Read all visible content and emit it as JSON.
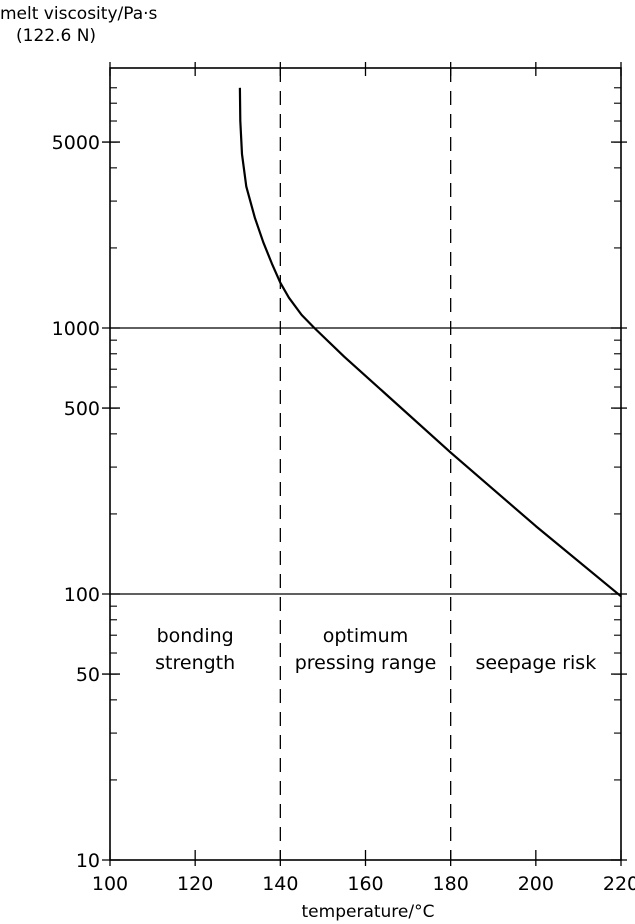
{
  "chart_data": {
    "type": "line",
    "ylabel": "melt viscosity/Pa·s",
    "ylabel_sub": "(122.6 N)",
    "xlabel": "temperature/°C",
    "xlim": [
      100,
      220
    ],
    "ylim": [
      10,
      8000
    ],
    "y_scale": "log",
    "x_ticks": [
      100,
      120,
      140,
      160,
      180,
      200,
      220
    ],
    "x_tick_labels": [
      "100",
      "120",
      "140",
      "160",
      "180",
      "200",
      "220"
    ],
    "y_ticks": [
      10,
      50,
      100,
      500,
      1000,
      5000
    ],
    "y_tick_labels": [
      "10",
      "50",
      "100",
      "500",
      "1000",
      "5000"
    ],
    "horizontal_lines": [
      100,
      1000
    ],
    "dashed_vertical_lines": [
      140,
      180
    ],
    "region_labels": [
      {
        "text": "bonding\nstrength",
        "x": 120,
        "y": 60
      },
      {
        "text": "optimum\npressing range",
        "x": 160,
        "y": 60
      },
      {
        "text": "seepage risk",
        "x": 200,
        "y": 60
      }
    ],
    "series": [
      {
        "x": [
          130.5,
          130.6,
          131,
          132,
          134,
          136,
          138,
          140,
          142,
          145,
          148,
          155,
          165,
          180,
          200,
          220
        ],
        "values": [
          8000,
          6000,
          4500,
          3400,
          2600,
          2100,
          1750,
          1480,
          1300,
          1120,
          1000,
          780,
          560,
          340,
          180,
          98
        ]
      }
    ]
  }
}
